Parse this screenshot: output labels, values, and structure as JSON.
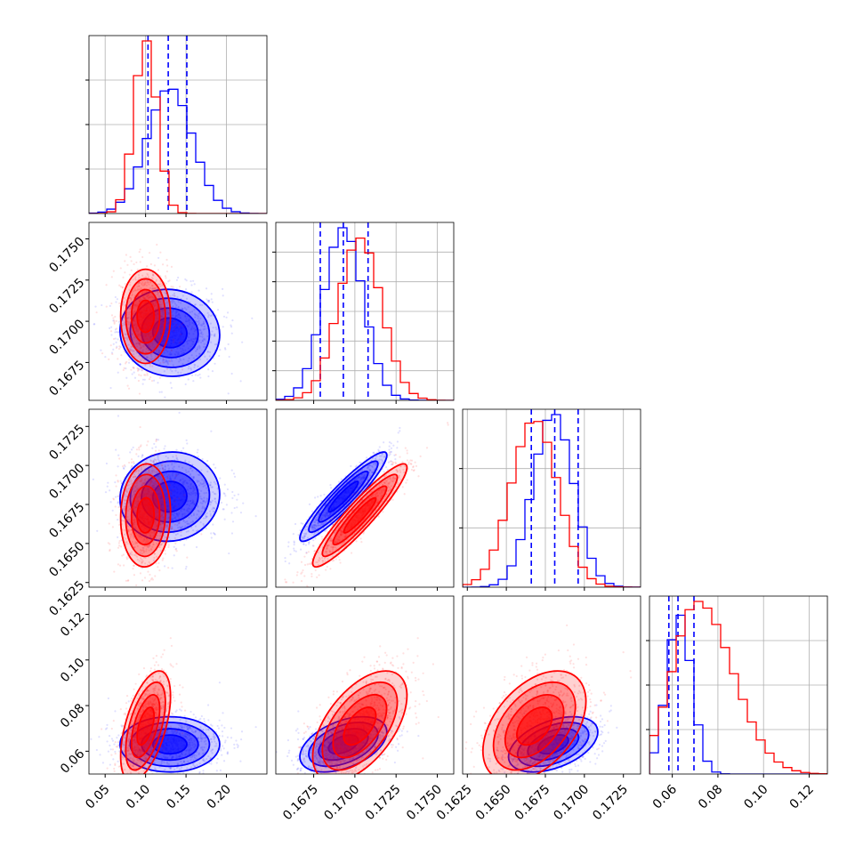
{
  "chart_data": {
    "type": "corner",
    "grid": true,
    "parameter_count": 4,
    "series": [
      {
        "name": "",
        "color": "#0000ff",
        "means": [
          0.13,
          0.1693,
          0.168,
          0.063
        ],
        "sigmas": [
          0.028,
          0.0012,
          0.0013,
          0.0055
        ],
        "correlations": {
          "1-0": -0.05,
          "2-0": 0.05,
          "2-1": 0.93,
          "3-0": 0.0,
          "3-1": 0.45,
          "3-2": 0.45
        },
        "quantile_lines": [
          [
            0.103,
            0.128,
            0.151
          ],
          [
            0.1679,
            0.1693,
            0.1708
          ],
          [
            0.1666,
            0.1681,
            0.1696
          ],
          [
            0.0585,
            0.0625,
            0.0695
          ]
        ],
        "hist_peak": [
          0.72,
          1.0,
          1.0,
          0.92
        ]
      },
      {
        "name": "",
        "color": "#ff0000",
        "means": [
          0.1,
          0.1703,
          0.1668,
          0.071
        ],
        "sigmas": [
          0.014,
          0.0013,
          0.0015,
          0.011
        ],
        "correlations": {
          "1-0": 0.0,
          "2-0": 0.05,
          "2-1": 0.93,
          "3-0": 0.55,
          "3-1": 0.55,
          "3-2": 0.45
        },
        "quantile_lines": [],
        "hist_peak": [
          1.0,
          0.94,
          0.96,
          1.0
        ]
      }
    ],
    "axes": [
      {
        "range": [
          0.03,
          0.25
        ],
        "ticks": [
          "0.05",
          "0.10",
          "0.15",
          "0.20"
        ],
        "tick_values": [
          0.05,
          0.1,
          0.15,
          0.2
        ]
      },
      {
        "range": [
          0.1652,
          0.176
        ],
        "ticks": [
          "0.1675",
          "0.1700",
          "0.1725",
          "0.1750"
        ],
        "tick_values": [
          0.1675,
          0.17,
          0.1725,
          0.175
        ]
      },
      {
        "range": [
          0.1622,
          0.1736
        ],
        "ticks": [
          "0.1625",
          "0.1650",
          "0.1675",
          "0.1700",
          "0.1725"
        ],
        "tick_values": [
          0.1625,
          0.165,
          0.1675,
          0.17,
          0.1725
        ]
      },
      {
        "range": [
          0.05,
          0.128
        ],
        "ticks": [
          "0.06",
          "0.08",
          "0.10",
          "0.12"
        ],
        "tick_values": [
          0.06,
          0.08,
          0.1,
          0.12
        ]
      }
    ],
    "diagonal_ticks": {
      "0": 3,
      "1": 5,
      "2": 2,
      "3": 3
    }
  }
}
